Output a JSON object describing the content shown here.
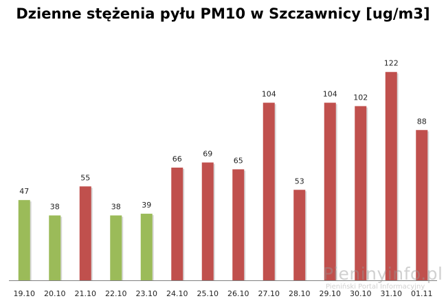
{
  "chart_data": {
    "type": "bar",
    "title": "Dzienne stężenia pyłu PM10 w Szczawnicy [ug/m3]",
    "xlabel": "",
    "ylabel": "",
    "categories": [
      "19.10",
      "20.10",
      "21.10",
      "22.10",
      "23.10",
      "24.10",
      "25.10",
      "26.10",
      "27.10",
      "28.10",
      "29.10",
      "30.10",
      "31.10",
      "01.11"
    ],
    "values": [
      47,
      38,
      55,
      38,
      39,
      66,
      69,
      65,
      104,
      53,
      104,
      102,
      122,
      88
    ],
    "bar_status": [
      "ok",
      "ok",
      "exceeded",
      "ok",
      "ok",
      "exceeded",
      "exceeded",
      "exceeded",
      "exceeded",
      "exceeded",
      "exceeded",
      "exceeded",
      "exceeded",
      "exceeded"
    ],
    "ylim": [
      0,
      140
    ],
    "grid": false,
    "legend": "none",
    "colors": {
      "ok": "#9BBB59",
      "exceeded": "#C0504D",
      "axis": "#7f7f7f"
    }
  },
  "watermark": {
    "main": "Pieninyinfo.pl",
    "sub": "Pieniński Portal Informacyjny"
  }
}
